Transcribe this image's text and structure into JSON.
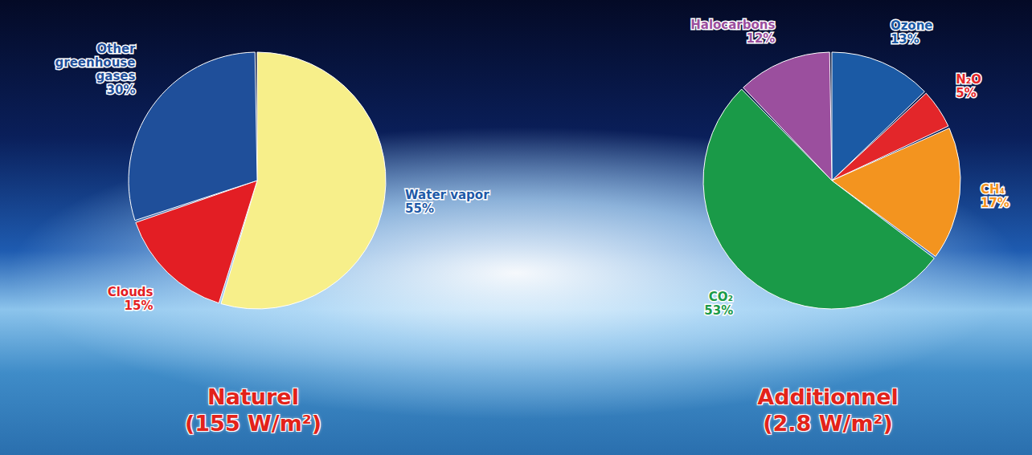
{
  "chart_data": [
    {
      "type": "pie",
      "title": "Naturel",
      "subtitle": "(155 W/m²)",
      "categories": [
        "Water vapor",
        "Clouds",
        "Other greenhouse gases"
      ],
      "values": [
        55,
        15,
        30
      ],
      "value_labels": [
        "55%",
        "15%",
        "30%"
      ],
      "colors": [
        "#f7ef8a",
        "#e31e24",
        "#1f4f9a"
      ],
      "data_labels": true
    },
    {
      "type": "pie",
      "title": "Additionnel",
      "subtitle": "(2.8 W/m²)",
      "categories": [
        "Ozone",
        "N₂O",
        "CH₄",
        "CO₂",
        "Halocarbons"
      ],
      "values": [
        13,
        5,
        17,
        53,
        12
      ],
      "value_labels": [
        "13%",
        "5%",
        "17%",
        "53%",
        "12%"
      ],
      "colors": [
        "#1b5aa5",
        "#e3262a",
        "#f3941f",
        "#1a9a48",
        "#9b4f9e"
      ],
      "data_labels": true
    }
  ]
}
